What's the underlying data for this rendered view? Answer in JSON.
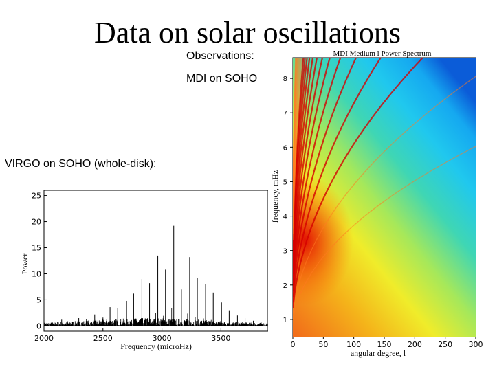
{
  "slide": {
    "title": "Data on solar oscillations",
    "observations_label": "Observations:",
    "mdi_label": "MDI on SOHO",
    "virgo_label": "VIRGO on SOHO (whole-disk):"
  },
  "chart_data": [
    {
      "type": "line",
      "title": "",
      "xlabel": "Frequency (microHz)",
      "ylabel": "Power",
      "xlim": [
        2000,
        3900
      ],
      "ylim": [
        -1,
        26
      ],
      "xticks": [
        "2000",
        "2500",
        "3000",
        "3500"
      ],
      "yticks": [
        "0",
        "5",
        "10",
        "15",
        "20",
        "25"
      ],
      "peaks": [
        {
          "x": 2150,
          "y": 1.2
        },
        {
          "x": 2200,
          "y": 0.9
        },
        {
          "x": 2295,
          "y": 1.5
        },
        {
          "x": 2360,
          "y": 1.3
        },
        {
          "x": 2430,
          "y": 2.2
        },
        {
          "x": 2500,
          "y": 1.6
        },
        {
          "x": 2560,
          "y": 3.6
        },
        {
          "x": 2625,
          "y": 3.4
        },
        {
          "x": 2700,
          "y": 4.8
        },
        {
          "x": 2760,
          "y": 6.2
        },
        {
          "x": 2830,
          "y": 9.0
        },
        {
          "x": 2895,
          "y": 8.2
        },
        {
          "x": 2965,
          "y": 13.5
        },
        {
          "x": 3030,
          "y": 10.8
        },
        {
          "x": 3100,
          "y": 19.2
        },
        {
          "x": 3165,
          "y": 7.0
        },
        {
          "x": 3235,
          "y": 13.2
        },
        {
          "x": 3300,
          "y": 9.2
        },
        {
          "x": 3370,
          "y": 8.0
        },
        {
          "x": 3435,
          "y": 6.4
        },
        {
          "x": 3505,
          "y": 4.5
        },
        {
          "x": 3570,
          "y": 3.0
        },
        {
          "x": 3640,
          "y": 2.0
        },
        {
          "x": 3705,
          "y": 1.5
        },
        {
          "x": 3775,
          "y": 1.0
        },
        {
          "x": 3840,
          "y": 0.8
        }
      ]
    },
    {
      "type": "heatmap",
      "title": "MDI Medium l Power Spectrum",
      "xlabel": "angular degree, l",
      "ylabel": "frequency, mHz",
      "xlim": [
        0,
        300
      ],
      "ylim": [
        0.5,
        8.6
      ],
      "xticks": [
        "0",
        "50",
        "100",
        "150",
        "200",
        "250",
        "300"
      ],
      "yticks": [
        "1",
        "2",
        "3",
        "4",
        "5",
        "6",
        "7",
        "8"
      ]
    }
  ]
}
